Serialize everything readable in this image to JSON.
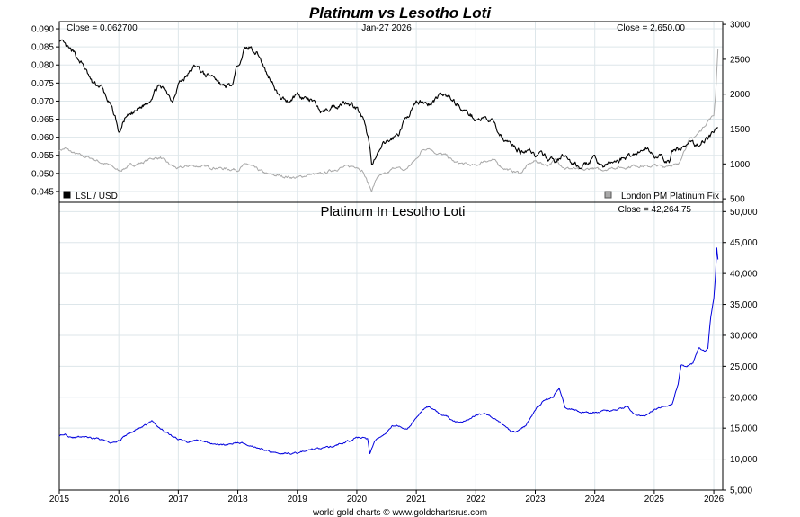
{
  "title": "Platinum vs Lesotho Loti",
  "footer": "world gold charts © www.goldchartsrus.com",
  "colors": {
    "title": "#1a1aff",
    "lsl": "#000000",
    "platinum": "#a8a8a8",
    "ratio": "#0000dd",
    "grid": "#dde6ea"
  },
  "chart_data": [
    {
      "type": "line",
      "title": "",
      "date_label": "Jan-27  2026",
      "close_left": "Close = 0.062700",
      "close_right": "Close = 2,650.00",
      "left_axis": {
        "ylim": [
          0.042,
          0.092
        ],
        "ticks": [
          "0.090",
          "0.085",
          "0.080",
          "0.075",
          "0.070",
          "0.065",
          "0.060",
          "0.055",
          "0.050",
          "0.045"
        ]
      },
      "right_axis": {
        "ylim": [
          450,
          3040
        ],
        "ticks": [
          "3000",
          "2500",
          "2000",
          "1500",
          "1000",
          "500"
        ]
      },
      "xlim": [
        2015.0,
        2026.15
      ],
      "grid": true,
      "legend": {
        "left": "LSL / USD",
        "right": "London PM Platinum Fix"
      },
      "series": [
        {
          "name": "LSL / USD",
          "axis": "left",
          "x": [
            2015.0,
            2015.1,
            2015.25,
            2015.4,
            2015.55,
            2015.7,
            2015.85,
            2015.95,
            2016.0,
            2016.1,
            2016.2,
            2016.35,
            2016.5,
            2016.65,
            2016.8,
            2016.9,
            2017.0,
            2017.15,
            2017.3,
            2017.45,
            2017.6,
            2017.75,
            2017.9,
            2018.0,
            2018.1,
            2018.2,
            2018.35,
            2018.5,
            2018.6,
            2018.7,
            2018.85,
            2019.0,
            2019.1,
            2019.25,
            2019.4,
            2019.55,
            2019.7,
            2019.85,
            2020.0,
            2020.1,
            2020.2,
            2020.25,
            2020.35,
            2020.45,
            2020.55,
            2020.7,
            2020.85,
            2021.0,
            2021.1,
            2021.25,
            2021.4,
            2021.55,
            2021.7,
            2021.85,
            2022.0,
            2022.15,
            2022.3,
            2022.4,
            2022.5,
            2022.6,
            2022.75,
            2022.9,
            2023.0,
            2023.1,
            2023.25,
            2023.35,
            2023.45,
            2023.6,
            2023.75,
            2023.9,
            2024.0,
            2024.15,
            2024.3,
            2024.45,
            2024.6,
            2024.75,
            2024.9,
            2025.0,
            2025.15,
            2025.25,
            2025.3,
            2025.45,
            2025.6,
            2025.75,
            2025.9,
            2026.0,
            2026.07
          ],
          "values": [
            0.087,
            0.085,
            0.083,
            0.08,
            0.075,
            0.074,
            0.069,
            0.065,
            0.061,
            0.065,
            0.066,
            0.068,
            0.07,
            0.074,
            0.073,
            0.07,
            0.075,
            0.077,
            0.08,
            0.077,
            0.077,
            0.074,
            0.074,
            0.08,
            0.084,
            0.085,
            0.083,
            0.077,
            0.075,
            0.071,
            0.07,
            0.072,
            0.071,
            0.07,
            0.067,
            0.068,
            0.069,
            0.07,
            0.068,
            0.065,
            0.059,
            0.053,
            0.055,
            0.058,
            0.059,
            0.061,
            0.066,
            0.069,
            0.07,
            0.069,
            0.072,
            0.071,
            0.069,
            0.067,
            0.065,
            0.065,
            0.064,
            0.061,
            0.059,
            0.058,
            0.056,
            0.057,
            0.055,
            0.055,
            0.054,
            0.053,
            0.055,
            0.053,
            0.052,
            0.053,
            0.054,
            0.052,
            0.053,
            0.054,
            0.055,
            0.056,
            0.057,
            0.055,
            0.054,
            0.053,
            0.056,
            0.057,
            0.058,
            0.058,
            0.06,
            0.061,
            0.0627
          ]
        },
        {
          "name": "London PM Platinum Fix",
          "axis": "right",
          "x": [
            2015.0,
            2015.1,
            2015.25,
            2015.4,
            2015.55,
            2015.7,
            2015.85,
            2015.95,
            2016.0,
            2016.2,
            2016.4,
            2016.55,
            2016.7,
            2016.85,
            2017.0,
            2017.2,
            2017.4,
            2017.6,
            2017.8,
            2018.0,
            2018.15,
            2018.35,
            2018.5,
            2018.7,
            2018.9,
            2019.0,
            2019.2,
            2019.4,
            2019.55,
            2019.7,
            2019.85,
            2020.0,
            2020.1,
            2020.2,
            2020.25,
            2020.35,
            2020.5,
            2020.65,
            2020.8,
            2021.0,
            2021.1,
            2021.2,
            2021.35,
            2021.5,
            2021.65,
            2021.8,
            2022.0,
            2022.15,
            2022.3,
            2022.45,
            2022.6,
            2022.75,
            2022.9,
            2023.0,
            2023.2,
            2023.35,
            2023.5,
            2023.65,
            2023.8,
            2023.95,
            2024.1,
            2024.3,
            2024.5,
            2024.7,
            2024.9,
            2025.0,
            2025.15,
            2025.25,
            2025.4,
            2025.5,
            2025.6,
            2025.7,
            2025.8,
            2025.9,
            2026.0,
            2026.03,
            2026.07
          ],
          "values": [
            1200,
            1220,
            1150,
            1110,
            1080,
            1020,
            980,
            930,
            900,
            980,
            1020,
            1080,
            1090,
            990,
            930,
            980,
            960,
            950,
            930,
            920,
            1000,
            910,
            850,
            830,
            810,
            800,
            850,
            850,
            900,
            940,
            960,
            970,
            900,
            700,
            620,
            820,
            850,
            960,
            900,
            1070,
            1200,
            1240,
            1150,
            1120,
            1020,
            1000,
            970,
            1050,
            1050,
            950,
            900,
            870,
            1000,
            1040,
            980,
            1060,
            940,
            930,
            900,
            940,
            910,
            950,
            950,
            980,
            960,
            980,
            960,
            990,
            980,
            1200,
            1350,
            1400,
            1500,
            1620,
            1700,
            2000,
            2650
          ]
        }
      ]
    },
    {
      "type": "line",
      "title": "Platinum In Lesotho Loti",
      "close": "Close = 42,264.75",
      "ylim": [
        5000,
        51500
      ],
      "y_ticks": [
        "50,000",
        "45,000",
        "40,000",
        "35,000",
        "30,000",
        "25,000",
        "20,000",
        "15,000",
        "10,000",
        "5,000"
      ],
      "y_tick_values": [
        50000,
        45000,
        40000,
        35000,
        30000,
        25000,
        20000,
        15000,
        10000,
        5000
      ],
      "x_ticks": [
        "2015",
        "2016",
        "2017",
        "2018",
        "2019",
        "2020",
        "2021",
        "2022",
        "2023",
        "2024",
        "2025",
        "2026"
      ],
      "xlim": [
        2015.0,
        2026.15
      ],
      "grid": true,
      "series": [
        {
          "name": "",
          "x": [
            2015.0,
            2015.1,
            2015.25,
            2015.4,
            2015.55,
            2015.7,
            2015.85,
            2016.0,
            2016.15,
            2016.3,
            2016.45,
            2016.55,
            2016.7,
            2016.85,
            2017.0,
            2017.15,
            2017.3,
            2017.5,
            2017.7,
            2017.9,
            2018.0,
            2018.15,
            2018.35,
            2018.55,
            2018.75,
            2019.0,
            2019.2,
            2019.4,
            2019.6,
            2019.75,
            2019.9,
            2020.0,
            2020.1,
            2020.18,
            2020.22,
            2020.3,
            2020.45,
            2020.6,
            2020.75,
            2020.85,
            2021.0,
            2021.1,
            2021.2,
            2021.35,
            2021.5,
            2021.65,
            2021.8,
            2022.0,
            2022.15,
            2022.3,
            2022.45,
            2022.6,
            2022.7,
            2022.85,
            2023.0,
            2023.15,
            2023.3,
            2023.4,
            2023.5,
            2023.65,
            2023.8,
            2024.0,
            2024.2,
            2024.4,
            2024.55,
            2024.7,
            2024.85,
            2025.0,
            2025.15,
            2025.3,
            2025.4,
            2025.45,
            2025.55,
            2025.65,
            2025.75,
            2025.85,
            2025.9,
            2025.95,
            2026.0,
            2026.03,
            2026.05,
            2026.07
          ],
          "values": [
            13800,
            14000,
            13500,
            13700,
            13300,
            13200,
            12700,
            13000,
            14000,
            14800,
            15500,
            16200,
            15000,
            14000,
            13200,
            12800,
            13000,
            12600,
            12300,
            12400,
            12800,
            12400,
            11800,
            11200,
            11000,
            11000,
            11500,
            11800,
            12000,
            12600,
            13000,
            13500,
            13500,
            13200,
            10800,
            13000,
            14000,
            15500,
            15200,
            14800,
            16500,
            18000,
            18500,
            17500,
            17000,
            16000,
            16200,
            17000,
            17500,
            16500,
            15500,
            14500,
            14500,
            15500,
            18000,
            19500,
            20000,
            21500,
            18500,
            18000,
            17500,
            17500,
            17800,
            18000,
            18500,
            17000,
            17000,
            18000,
            18500,
            19000,
            22000,
            25000,
            25000,
            25500,
            28000,
            27500,
            28000,
            33000,
            36000,
            40000,
            44000,
            42264.75
          ]
        }
      ]
    }
  ]
}
